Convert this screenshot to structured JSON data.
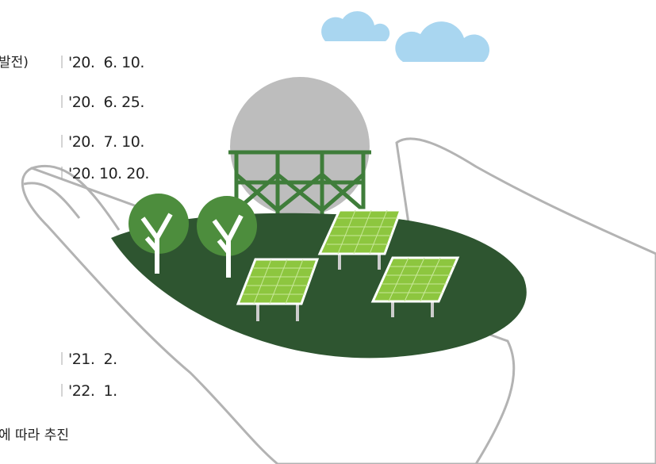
{
  "fragments": {
    "top_left": "발전)",
    "bottom_left": "에 따라 추진"
  },
  "dates": [
    "'20.  6. 10.",
    "'20.  6. 25.",
    "'20.  7. 10.",
    "'20. 10. 20.",
    "'21.  2.",
    "'22.  1."
  ]
}
